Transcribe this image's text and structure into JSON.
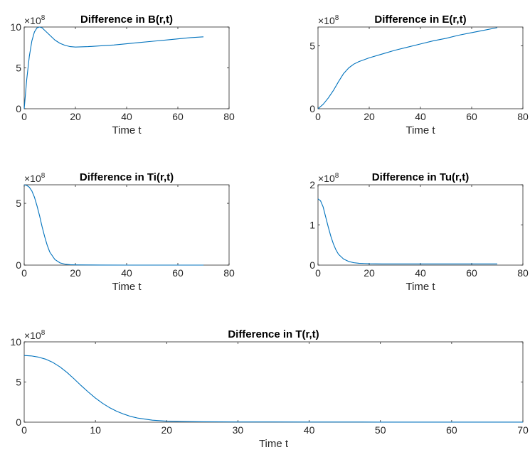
{
  "figure": {
    "background": "#ffffff",
    "axes_color": "#262626",
    "line_color": "#0072BD"
  },
  "chart_data": [
    {
      "type": "line",
      "title": "Difference in B(r,t)",
      "xlabel": "Time t",
      "ylabel": "",
      "xlim": [
        0,
        80
      ],
      "ylim": [
        0,
        10
      ],
      "xticks": [
        0,
        20,
        40,
        60,
        80
      ],
      "yticks": [
        0,
        5,
        10
      ],
      "exponent": "×10",
      "exponent_power": "8",
      "grid": false,
      "series": [
        {
          "x": [
            0,
            1,
            2,
            3,
            4,
            5,
            6,
            7,
            8,
            10,
            12,
            14,
            16,
            18,
            20,
            25,
            30,
            35,
            40,
            45,
            50,
            55,
            60,
            65,
            70
          ],
          "y": [
            0,
            3.6,
            6.4,
            8.3,
            9.4,
            9.9,
            10.0,
            9.9,
            9.6,
            9.0,
            8.4,
            8.0,
            7.75,
            7.6,
            7.55,
            7.6,
            7.7,
            7.8,
            7.95,
            8.1,
            8.25,
            8.4,
            8.55,
            8.7,
            8.8
          ]
        }
      ]
    },
    {
      "type": "line",
      "title": "Difference in E(r,t)",
      "xlabel": "Time t",
      "ylabel": "",
      "xlim": [
        0,
        80
      ],
      "ylim": [
        0,
        6.5
      ],
      "xticks": [
        0,
        20,
        40,
        60,
        80
      ],
      "yticks": [
        0,
        5
      ],
      "exponent": "×10",
      "exponent_power": "8",
      "grid": false,
      "series": [
        {
          "x": [
            0,
            2,
            4,
            6,
            8,
            10,
            12,
            14,
            16,
            20,
            25,
            30,
            35,
            40,
            45,
            50,
            55,
            60,
            65,
            70
          ],
          "y": [
            0,
            0.35,
            0.85,
            1.45,
            2.15,
            2.8,
            3.25,
            3.55,
            3.75,
            4.05,
            4.35,
            4.65,
            4.9,
            5.15,
            5.4,
            5.6,
            5.85,
            6.05,
            6.25,
            6.45
          ]
        }
      ]
    },
    {
      "type": "line",
      "title": "Difference in Ti(r,t)",
      "xlabel": "Time t",
      "ylabel": "",
      "xlim": [
        0,
        80
      ],
      "ylim": [
        0,
        6.5
      ],
      "xticks": [
        0,
        20,
        40,
        60,
        80
      ],
      "yticks": [
        0,
        5
      ],
      "exponent": "×10",
      "exponent_power": "8",
      "grid": false,
      "series": [
        {
          "x": [
            0,
            1,
            2,
            3,
            4,
            5,
            6,
            7,
            8,
            9,
            10,
            12,
            14,
            16,
            18,
            20,
            25,
            30,
            40,
            50,
            60,
            70
          ],
          "y": [
            6.5,
            6.45,
            6.3,
            6.0,
            5.5,
            4.8,
            4.0,
            3.1,
            2.3,
            1.6,
            1.05,
            0.45,
            0.18,
            0.07,
            0.03,
            0.02,
            0.01,
            0.005,
            0.0,
            0.0,
            0.0,
            0.0
          ]
        }
      ]
    },
    {
      "type": "line",
      "title": "Difference in Tu(r,t)",
      "xlabel": "Time t",
      "ylabel": "",
      "xlim": [
        0,
        80
      ],
      "ylim": [
        0,
        2
      ],
      "xticks": [
        0,
        20,
        40,
        60,
        80
      ],
      "yticks": [
        0,
        1,
        2
      ],
      "exponent": "×10",
      "exponent_power": "8",
      "grid": false,
      "series": [
        {
          "x": [
            0,
            1,
            2,
            3,
            4,
            5,
            6,
            7,
            8,
            10,
            12,
            14,
            16,
            18,
            20,
            25,
            30,
            40,
            50,
            60,
            70
          ],
          "y": [
            1.65,
            1.6,
            1.45,
            1.2,
            0.95,
            0.72,
            0.53,
            0.38,
            0.27,
            0.15,
            0.09,
            0.06,
            0.045,
            0.04,
            0.035,
            0.03,
            0.03,
            0.03,
            0.03,
            0.03,
            0.03
          ]
        }
      ]
    },
    {
      "type": "line",
      "title": "Difference in T(r,t)",
      "xlabel": "Time t",
      "ylabel": "",
      "xlim": [
        0,
        70
      ],
      "ylim": [
        0,
        10
      ],
      "xticks": [
        0,
        10,
        20,
        30,
        40,
        50,
        60,
        70
      ],
      "yticks": [
        0,
        5,
        10
      ],
      "exponent": "×10",
      "exponent_power": "8",
      "grid": false,
      "series": [
        {
          "x": [
            0,
            1,
            2,
            3,
            4,
            5,
            6,
            7,
            8,
            9,
            10,
            11,
            12,
            13,
            14,
            15,
            16,
            18,
            20,
            22,
            25,
            30,
            40,
            50,
            60,
            70
          ],
          "y": [
            8.3,
            8.25,
            8.1,
            7.85,
            7.45,
            6.9,
            6.2,
            5.4,
            4.55,
            3.75,
            3.0,
            2.35,
            1.8,
            1.35,
            1.0,
            0.7,
            0.5,
            0.25,
            0.13,
            0.08,
            0.05,
            0.03,
            0.02,
            0.01,
            0.01,
            0.01
          ]
        }
      ]
    }
  ]
}
